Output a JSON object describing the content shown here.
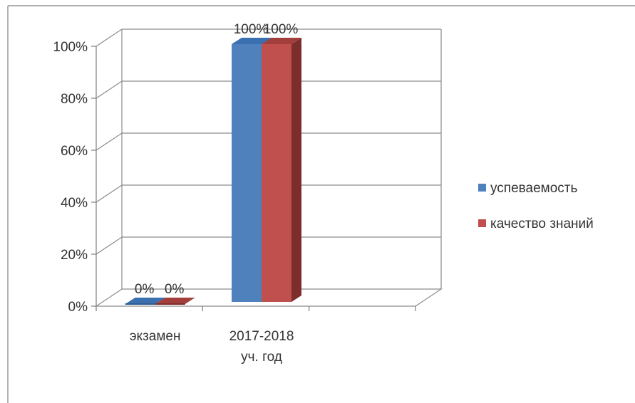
{
  "chart_data": {
    "type": "bar",
    "style": "3d-clustered-column",
    "categories": [
      [
        "экзамен"
      ],
      [
        "2017-2018",
        "уч. год"
      ],
      [
        ""
      ]
    ],
    "series": [
      {
        "name": "успеваемость",
        "color": "#4F81BD",
        "side_color": "#2E5C8F",
        "top_color": "#3A6FB0",
        "values": [
          0,
          100,
          null
        ],
        "labels": [
          "0%",
          "100%",
          ""
        ]
      },
      {
        "name": "качество знаний",
        "color": "#C0504D",
        "side_color": "#7B2E2C",
        "top_color": "#A23F3C",
        "values": [
          0,
          100,
          null
        ],
        "labels": [
          "0%",
          "100%",
          ""
        ]
      }
    ],
    "yticks": [
      "0%",
      "20%",
      "40%",
      "60%",
      "80%",
      "100%"
    ],
    "ylim": [
      0,
      100
    ],
    "grid": true,
    "legend_position": "right",
    "title": "",
    "xlabel": "",
    "ylabel": ""
  }
}
